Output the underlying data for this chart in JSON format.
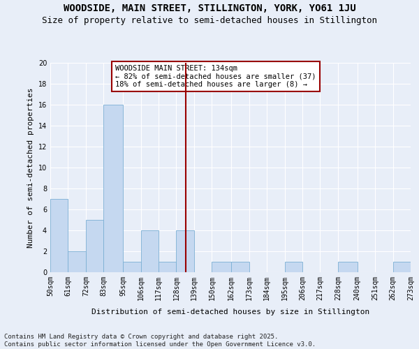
{
  "title": "WOODSIDE, MAIN STREET, STILLINGTON, YORK, YO61 1JU",
  "subtitle": "Size of property relative to semi-detached houses in Stillington",
  "xlabel": "Distribution of semi-detached houses by size in Stillington",
  "ylabel": "Number of semi-detached properties",
  "bins": [
    50,
    61,
    72,
    83,
    95,
    106,
    117,
    128,
    139,
    150,
    162,
    173,
    184,
    195,
    206,
    217,
    228,
    240,
    251,
    262,
    273
  ],
  "counts": [
    7,
    2,
    5,
    16,
    1,
    4,
    1,
    4,
    0,
    1,
    1,
    0,
    0,
    1,
    0,
    0,
    1,
    0,
    0,
    1
  ],
  "bar_color": "#c5d8f0",
  "bar_edge_color": "#7bafd4",
  "vline_x": 134,
  "vline_color": "#990000",
  "annotation_title": "WOODSIDE MAIN STREET: 134sqm",
  "annotation_line1": "← 82% of semi-detached houses are smaller (37)",
  "annotation_line2": "18% of semi-detached houses are larger (8) →",
  "annotation_box_color": "#ffffff",
  "annotation_box_edge": "#990000",
  "ylim": [
    0,
    20
  ],
  "yticks": [
    0,
    2,
    4,
    6,
    8,
    10,
    12,
    14,
    16,
    18,
    20
  ],
  "tick_labels": [
    "50sqm",
    "61sqm",
    "72sqm",
    "83sqm",
    "95sqm",
    "106sqm",
    "117sqm",
    "128sqm",
    "139sqm",
    "150sqm",
    "162sqm",
    "173sqm",
    "184sqm",
    "195sqm",
    "206sqm",
    "217sqm",
    "228sqm",
    "240sqm",
    "251sqm",
    "262sqm",
    "273sqm"
  ],
  "footnote": "Contains HM Land Registry data © Crown copyright and database right 2025.\nContains public sector information licensed under the Open Government Licence v3.0.",
  "bg_color": "#e8eef8",
  "grid_color": "#ffffff",
  "title_fontsize": 10,
  "subtitle_fontsize": 9,
  "axis_label_fontsize": 8,
  "tick_fontsize": 7,
  "annotation_fontsize": 7.5,
  "footnote_fontsize": 6.5
}
